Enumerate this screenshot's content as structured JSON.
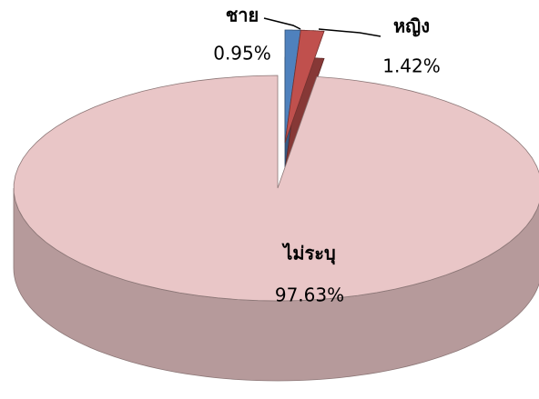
{
  "chart_data": {
    "type": "pie",
    "categories": [
      "ชาย",
      "หญิง",
      "ไม่ระบุ"
    ],
    "values": [
      0.95,
      1.42,
      97.63
    ],
    "value_labels": [
      "0.95%",
      "1.42%",
      "97.63%"
    ],
    "colors": [
      "#4f81bd",
      "#c0504d",
      "#e9c6c7"
    ]
  }
}
